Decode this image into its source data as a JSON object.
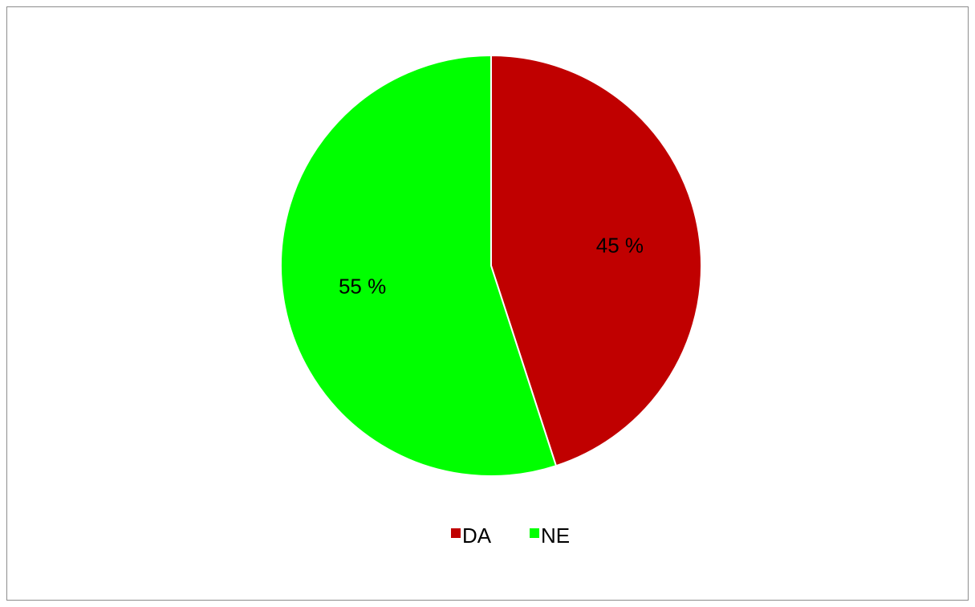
{
  "chart_data": {
    "type": "pie",
    "categories": [
      "DA",
      "NE"
    ],
    "values": [
      45,
      55
    ],
    "labels": [
      "45 %",
      "55 %"
    ],
    "colors": [
      "#c00000",
      "#00ff00"
    ],
    "legend": {
      "position": "bottom",
      "entries": [
        "DA",
        "NE"
      ]
    },
    "title": ""
  }
}
